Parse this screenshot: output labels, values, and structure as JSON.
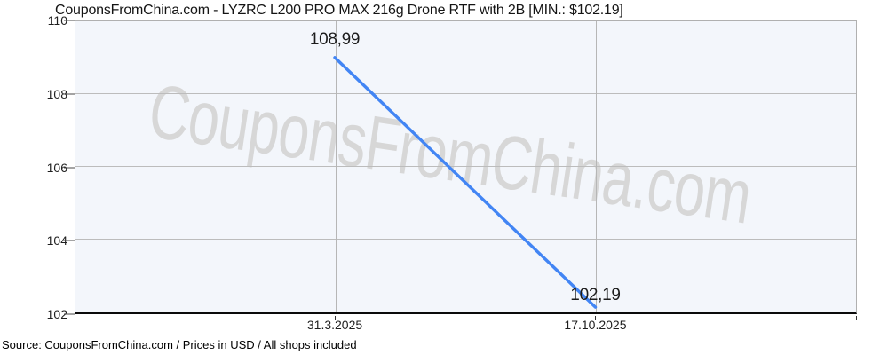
{
  "page": {
    "title": "CouponsFromChina.com - LYZRC L200 PRO MAX 216g Drone RTF with 2B [MIN.: $102.19]",
    "watermark": "CouponsFromChina.com",
    "footer": "Source: CouponsFromChina.com / Prices in USD / All shops included"
  },
  "colors": {
    "line": "#4285f4",
    "plot_background": "#f3f6fb",
    "gridline": "#bcbcbc",
    "border": "#b0b0b0",
    "axis": "#0a0a0a",
    "watermark": "#d7d7d7",
    "text": "#141414"
  },
  "chart_data": {
    "type": "line",
    "title": "CouponsFromChina.com - LYZRC L200 PRO MAX 216g Drone RTF with 2B [MIN.: $102.19]",
    "x": [
      "31.3.2025",
      "17.10.2025"
    ],
    "series": [
      {
        "name": "Price (USD)",
        "values": [
          108.99,
          102.19
        ]
      }
    ],
    "point_labels": [
      "108,99",
      "102,19"
    ],
    "ylim": [
      102,
      110
    ],
    "yticks": [
      110,
      108,
      106,
      104,
      102
    ],
    "ytick_labels": [
      "110",
      "108",
      "106",
      "104",
      "102"
    ],
    "xtick_labels": [
      "31.3.2025",
      "17.10.2025"
    ],
    "grid": true,
    "legend": "none"
  }
}
